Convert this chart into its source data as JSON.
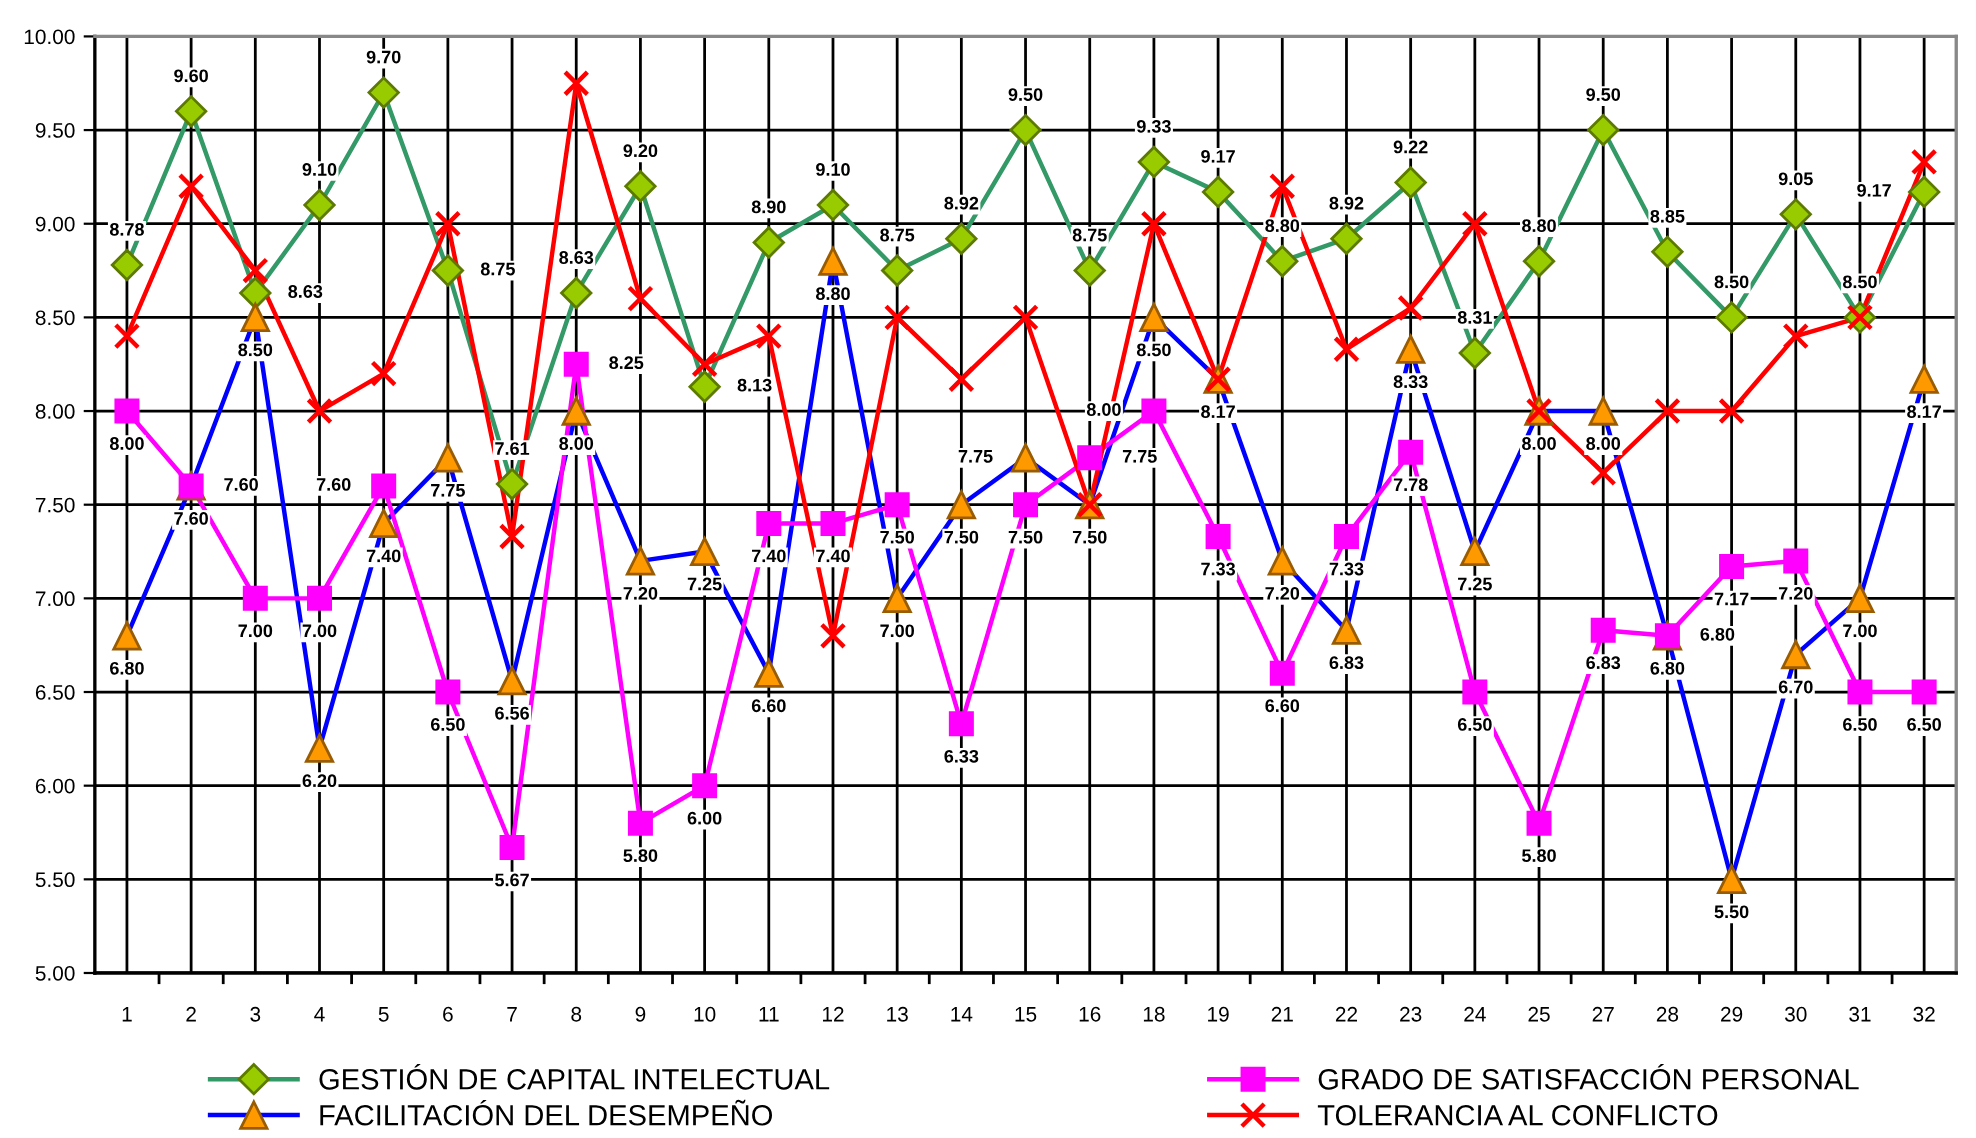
{
  "chart_data": {
    "type": "line",
    "categories": [
      "1",
      "2",
      "3",
      "4",
      "5",
      "6",
      "7",
      "8",
      "9",
      "10",
      "11",
      "12",
      "13",
      "14",
      "15",
      "16",
      "18",
      "19",
      "21",
      "22",
      "23",
      "24",
      "25",
      "27",
      "28",
      "29",
      "30",
      "31",
      "32"
    ],
    "series": [
      {
        "name": "GESTIÓN DE CAPITAL INTELECTUAL",
        "color": "#339966",
        "marker": "diamond",
        "colors": [
          "#99cc00",
          "#99cc00",
          "#99cc00",
          "#99cc00",
          "#99cc00",
          "#99cc00",
          "#99cc00",
          "#99cc00",
          "#99cc00",
          "#99cc00",
          "#99cc00",
          "#99cc00",
          "#99cc00",
          "#99cc00",
          "#99cc00",
          "#99cc00",
          "#99cc00",
          "#99cc00",
          "#99cc00",
          "#99cc00",
          "#99cc00",
          "#99cc00",
          "#99cc00",
          "#99cc00",
          "#99cc00",
          "#99cc00",
          "#99cc00",
          "#99cc00",
          "#99cc00"
        ],
        "values": [
          8.78,
          9.6,
          8.63,
          9.1,
          9.7,
          8.75,
          7.61,
          8.63,
          9.2,
          8.13,
          8.9,
          9.1,
          8.75,
          8.92,
          9.5,
          8.75,
          9.33,
          9.17,
          8.8,
          8.92,
          9.22,
          8.31,
          8.8,
          9.5,
          8.85,
          8.5,
          9.05,
          8.5,
          9.17
        ],
        "value_labels": [
          "8.78",
          "9.60",
          "8.63",
          "9.10",
          "9.70",
          "8.75",
          "7.61",
          "8.63",
          "9.20",
          "8.13",
          "8.90",
          "9.10",
          "8.75",
          "8.92",
          "9.50",
          "8.75",
          "9.33",
          "9.17",
          "8.80",
          "8.92",
          "9.22",
          "8.31",
          "8.80",
          "9.50",
          "8.85",
          "8.50",
          "9.05",
          "8.50",
          "9.17"
        ]
      },
      {
        "name": "FACILITACIÓN DEL DESEMPEÑO",
        "color": "#0000ff",
        "marker": "triangle",
        "colors": [
          "#ff9900",
          "#ff9900",
          "#ff9900",
          "#ff9900",
          "#ff9900",
          "#ff9900",
          "#ff9900",
          "#ff9900",
          "#ff9900",
          "#ff9900",
          "#ff9900",
          "#ff9900",
          "#ff9900",
          "#ff9900",
          "#ff9900",
          "#ff9900",
          "#ff9900",
          "#ff9900",
          "#ff9900",
          "#ff9900",
          "#ff9900",
          "#ff9900",
          "#ff9900",
          "#ff9900",
          "#ff9900",
          "#ff9900",
          "#ff9900",
          "#ff9900",
          "#ff9900"
        ],
        "values": [
          6.8,
          7.6,
          8.5,
          6.2,
          7.4,
          7.75,
          6.56,
          8.0,
          7.2,
          7.25,
          6.6,
          8.8,
          7.0,
          7.5,
          7.75,
          7.5,
          8.5,
          8.17,
          7.2,
          6.83,
          8.33,
          7.25,
          8.0,
          8.0,
          6.8,
          5.5,
          6.7,
          7.0,
          8.17
        ],
        "value_labels": [
          "6.80",
          "7.60",
          "8.50",
          "6.20",
          "7.40",
          "7.75",
          "6.56",
          "8.00",
          "7.20",
          "7.25",
          "6.60",
          "8.80",
          "7.00",
          "7.50",
          "7.75",
          "7.50",
          "8.50",
          "8.17",
          "7.20",
          "6.83",
          "8.33",
          "7.25",
          "8.00",
          "8.00",
          "6.80",
          "5.50",
          "6.70",
          "7.00",
          "8.17"
        ]
      },
      {
        "name": "GRADO DE SATISFACCIÓN PERSONAL",
        "color": "#ff00ff",
        "marker": "square",
        "values": [
          8.0,
          7.6,
          7.0,
          7.0,
          7.6,
          6.5,
          5.67,
          8.25,
          5.8,
          6.0,
          7.4,
          7.4,
          7.5,
          6.33,
          7.5,
          7.75,
          8.0,
          7.33,
          6.6,
          7.33,
          7.78,
          6.5,
          5.8,
          6.83,
          6.8,
          7.17,
          7.2,
          6.5,
          6.5
        ],
        "value_labels": [
          "8.00",
          "7.60",
          "7.00",
          "7.00",
          "7.60",
          "6.50",
          "5.67",
          "8.25",
          "5.80",
          "6.00",
          "7.40",
          "7.40",
          "7.50",
          "6.33",
          "7.50",
          "7.75",
          "8.00",
          "7.33",
          "6.60",
          "7.33",
          "7.78",
          "6.50",
          "5.80",
          "6.83",
          "6.80",
          "7.17",
          "7.20",
          "6.50",
          "6.50"
        ]
      },
      {
        "name": "TOLERANCIA AL CONFLICTO",
        "color": "#ff0000",
        "marker": "cross",
        "values": [
          8.4,
          9.2,
          8.75,
          8.0,
          8.2,
          9.0,
          7.33,
          9.75,
          8.6,
          8.25,
          8.4,
          6.8,
          8.5,
          8.17,
          8.5,
          7.5,
          9.0,
          8.17,
          9.2,
          8.33,
          8.55,
          9.0,
          8.0,
          7.67,
          8.0,
          8.0,
          8.4,
          8.5,
          9.33
        ]
      }
    ],
    "ylim": [
      5,
      10
    ],
    "yticks": [
      {
        "value": 5,
        "label": "5.00"
      },
      {
        "value": 5.5,
        "label": "5.50"
      },
      {
        "value": 6,
        "label": "6.00"
      },
      {
        "value": 6.5,
        "label": "6.50"
      },
      {
        "value": 7,
        "label": "7.00"
      },
      {
        "value": 7.5,
        "label": "7.50"
      },
      {
        "value": 8,
        "label": "8.00"
      },
      {
        "value": 8.5,
        "label": "8.50"
      },
      {
        "value": 9,
        "label": "9.00"
      },
      {
        "value": 9.5,
        "label": "9.50"
      },
      {
        "value": 10,
        "label": "10.00"
      }
    ],
    "grid": true,
    "legend": "bottom",
    "line_style": "solid"
  }
}
